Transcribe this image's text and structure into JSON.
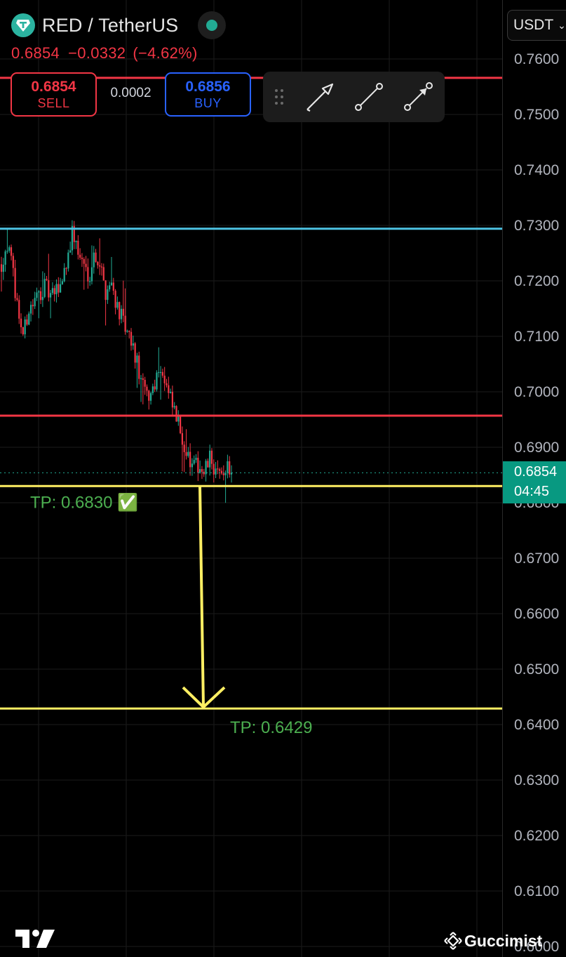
{
  "header": {
    "symbol": "RED / TetherUS",
    "last_price": "0.6854",
    "change": "−0.0332",
    "change_pct": "(−4.62%)"
  },
  "trade": {
    "sell_price": "0.6854",
    "sell_label": "SELL",
    "spread": "0.0002",
    "buy_price": "0.6856",
    "buy_label": "BUY"
  },
  "currency": "USDT",
  "price_tag": {
    "price": "0.6854",
    "timer": "04:45"
  },
  "watermark": "Guccimist",
  "colors": {
    "background": "#000000",
    "up": "#22ab94",
    "down": "#f23645",
    "resistance_cyan": "#4dc3e3",
    "level_red": "#f23645",
    "target_yellow": "#ffef63",
    "tp_text": "#4caf50",
    "buy_blue": "#2962ff"
  },
  "icons": [
    "tether-logo-icon",
    "status-dot-icon",
    "drag-grip-icon",
    "arrow-tool-icon",
    "trend-line-icon",
    "arrow-line-icon",
    "chevron-down-icon",
    "tradingview-logo-icon",
    "binance-logo-icon"
  ],
  "chart_data": {
    "type": "candlestick",
    "title": "",
    "xlabel": "",
    "ylabel": "",
    "ylim": [
      0.6,
      0.763
    ],
    "grid": true,
    "y_ticks": [
      "0.7600",
      "0.7500",
      "0.7400",
      "0.7300",
      "0.7200",
      "0.7100",
      "0.7000",
      "0.6900",
      "0.6800",
      "0.6700",
      "0.6600",
      "0.6500",
      "0.6400",
      "0.6300",
      "0.6200",
      "0.6100",
      "0.6000"
    ],
    "y_tick_values": [
      0.76,
      0.75,
      0.74,
      0.73,
      0.72,
      0.71,
      0.7,
      0.69,
      0.68,
      0.67,
      0.66,
      0.65,
      0.64,
      0.63,
      0.62,
      0.61,
      0.6
    ],
    "current_price": 0.6854,
    "horizontal_lines": [
      {
        "value": 0.7566,
        "color": "#f23645"
      },
      {
        "value": 0.7294,
        "color": "#4dc3e3"
      },
      {
        "value": 0.6957,
        "color": "#f23645"
      },
      {
        "value": 0.683,
        "color": "#ffef63",
        "label": "TP: 0.6830 ✅"
      },
      {
        "value": 0.6429,
        "color": "#ffef63",
        "label": "TP: 0.6429"
      }
    ],
    "arrow": {
      "from": 0.683,
      "to": 0.6429,
      "color": "#ffef63"
    },
    "close_path": [
      0.723,
      0.727,
      0.722,
      0.715,
      0.71,
      0.715,
      0.716,
      0.718,
      0.719,
      0.717,
      0.718,
      0.72,
      0.724,
      0.729,
      0.725,
      0.723,
      0.721,
      0.725,
      0.723,
      0.718,
      0.72,
      0.716,
      0.713,
      0.71,
      0.708,
      0.704,
      0.7,
      0.699,
      0.702,
      0.705,
      0.701,
      0.698,
      0.695,
      0.692,
      0.688,
      0.686,
      0.687,
      0.685,
      0.688,
      0.686,
      0.684,
      0.687,
      0.6854
    ]
  }
}
